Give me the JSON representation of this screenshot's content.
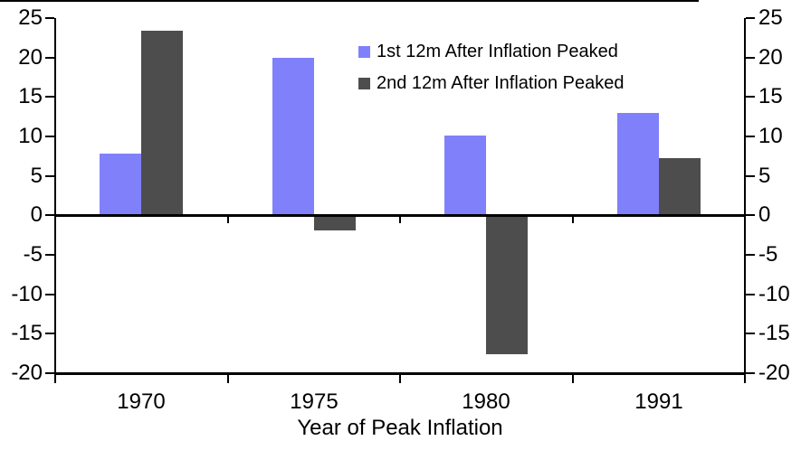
{
  "chart_data": {
    "type": "bar",
    "title": "",
    "xlabel": "Year of Peak Inflation",
    "ylabel": "",
    "categories": [
      "1970",
      "1975",
      "1980",
      "1991"
    ],
    "series": [
      {
        "name": "1st 12m After Inflation Peaked",
        "color": "#8080FA",
        "values": [
          7.8,
          20.0,
          10.1,
          13.0
        ]
      },
      {
        "name": "2nd 12m After Inflation Peaked",
        "color": "#4D4D4D",
        "values": [
          23.4,
          -1.9,
          -17.6,
          7.3
        ]
      }
    ],
    "ylim": [
      -20,
      25
    ],
    "yticks": [
      25,
      20,
      15,
      10,
      5,
      0,
      -5,
      -10,
      -15,
      -20
    ],
    "y_axis": {
      "left": true,
      "right": true,
      "tick_interval": 5
    },
    "grid": false,
    "legend_position": "top-center",
    "axis_color": "#000000",
    "background_color": "#FFFFFF",
    "zero_baseline": true
  }
}
